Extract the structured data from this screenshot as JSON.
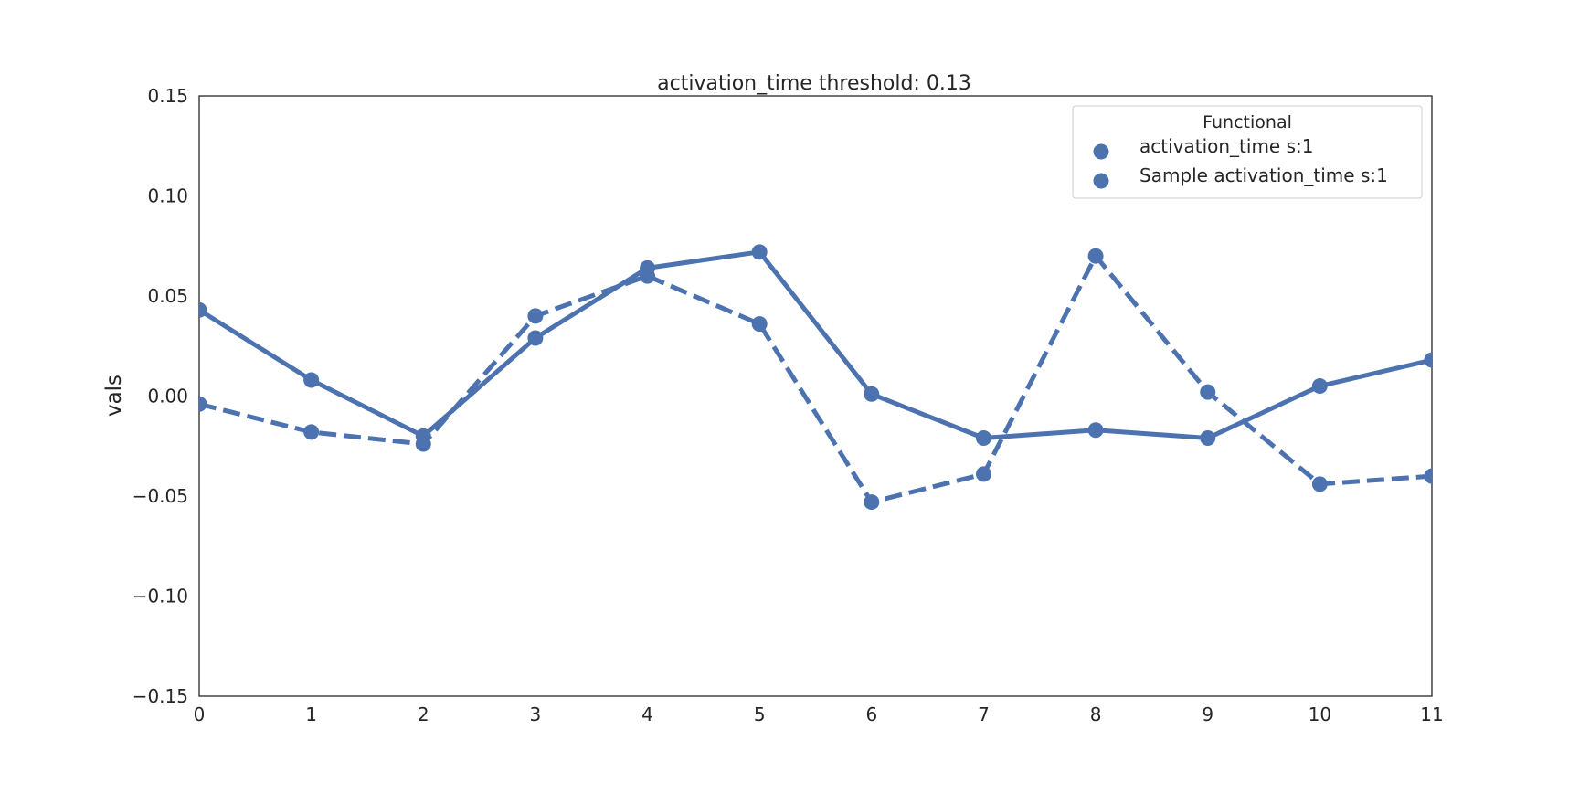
{
  "chart_data": {
    "type": "line",
    "title": "activation_time threshold: 0.13",
    "xlabel": "",
    "ylabel": "vals",
    "x": [
      0,
      1,
      2,
      3,
      4,
      5,
      6,
      7,
      8,
      9,
      10,
      11
    ],
    "xlim": [
      0,
      11
    ],
    "ylim": [
      -0.15,
      0.15
    ],
    "yticks": [
      -0.15,
      -0.1,
      -0.05,
      0.0,
      0.05,
      0.1,
      0.15
    ],
    "ytick_labels": [
      "−0.15",
      "−0.10",
      "−0.05",
      "0.00",
      "0.05",
      "0.10",
      "0.15"
    ],
    "xtick_labels": [
      "0",
      "1",
      "2",
      "3",
      "4",
      "5",
      "6",
      "7",
      "8",
      "9",
      "10",
      "11"
    ],
    "grid": false,
    "legend": {
      "title": "Functional",
      "placement": "top-right"
    },
    "series": [
      {
        "name": "activation_time s:1",
        "style": "solid",
        "color": "#4c72b0",
        "values": [
          0.043,
          0.008,
          -0.02,
          0.029,
          0.064,
          0.072,
          0.001,
          -0.021,
          -0.017,
          -0.021,
          0.005,
          0.018
        ]
      },
      {
        "name": "Sample activation_time s:1",
        "style": "dashed",
        "color": "#4c72b0",
        "values": [
          -0.004,
          -0.018,
          -0.024,
          0.04,
          0.06,
          0.036,
          -0.053,
          -0.039,
          0.07,
          0.002,
          -0.044,
          -0.04
        ]
      }
    ]
  }
}
